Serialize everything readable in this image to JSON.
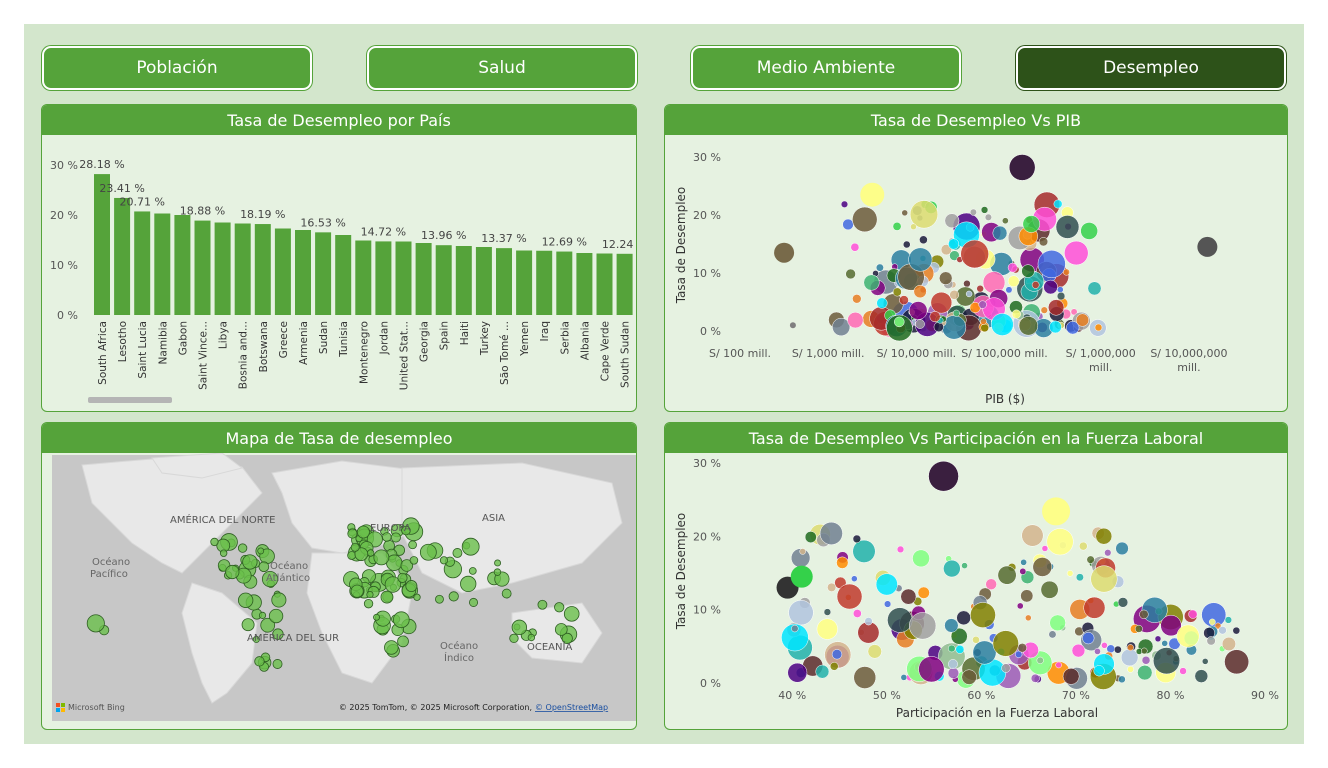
{
  "nav": {
    "tabs": [
      {
        "label": "Población",
        "active": false
      },
      {
        "label": "Salud",
        "active": false
      },
      {
        "label": "Medio Ambiente",
        "active": false
      },
      {
        "label": "Desempleo",
        "active": true
      }
    ]
  },
  "colors": {
    "accent": "#55a33a",
    "accent_dark": "#2d5219",
    "background": "#d3e6cc",
    "panel_bg": "#e6f2e1"
  },
  "bar_panel": {
    "title": "Tasa de Desempleo por País"
  },
  "gdp_panel": {
    "title": "Tasa de Desempleo Vs PIB"
  },
  "map_panel": {
    "title": "Mapa de Tasa de desempleo",
    "labels": {
      "north_america": "AMÉRICA DEL NORTE",
      "south_america": "AMÉRICA DEL SUR",
      "europe": "EUROPA",
      "asia": "ASIA",
      "oceania": "OCEANÍA",
      "pacific_1": "Océano",
      "pacific_2": "Pacífico",
      "atlantic_1": "Océano",
      "atlantic_2": "Atlántico",
      "indian_1": "Océano",
      "indian_2": "Índico"
    },
    "brand": "Microsoft Bing",
    "credits": "© 2025 TomTom, © 2025 Microsoft Corporation,",
    "credits_link": "© OpenStreetMap"
  },
  "labor_panel": {
    "title": "Tasa de Desempleo Vs Participación en la Fuerza Laboral"
  },
  "chart_data": [
    {
      "type": "bar",
      "title": "Tasa de Desempleo por País",
      "categories": [
        "South Africa",
        "Lesotho",
        "Saint Lucia",
        "Namibia",
        "Gabon",
        "Saint Vince...",
        "Libya",
        "Bosnia and...",
        "Botswana",
        "Greece",
        "Armenia",
        "Sudan",
        "Tunisia",
        "Montenegro",
        "Jordan",
        "United Stat...",
        "Georgia",
        "Spain",
        "Haiti",
        "Turkey",
        "São Tomé ...",
        "Yemen",
        "Iraq",
        "Serbia",
        "Albania",
        "Cape Verde",
        "South Sudan"
      ],
      "values": [
        28.18,
        23.41,
        20.71,
        20.3,
        20.0,
        18.88,
        18.5,
        18.3,
        18.19,
        17.3,
        17.0,
        16.53,
        16.0,
        14.9,
        14.72,
        14.7,
        14.4,
        13.96,
        13.8,
        13.6,
        13.37,
        12.9,
        12.85,
        12.69,
        12.4,
        12.3,
        12.24
      ],
      "data_labels": [
        "28.18 %",
        "23.41 %",
        "20.71 %",
        "",
        "",
        "18.88 %",
        "",
        "",
        "18.19 %",
        "",
        "",
        "16.53 %",
        "",
        "",
        "14.72 %",
        "",
        "",
        "13.96 %",
        "",
        "",
        "13.37 %",
        "",
        "",
        "12.69 %",
        "",
        "",
        "12.24 %"
      ],
      "y_ticks": [
        "0 %",
        "10 %",
        "20 %",
        "30 %"
      ],
      "ylim": [
        0,
        32
      ]
    },
    {
      "type": "scatter",
      "title": "Tasa de Desempleo Vs PIB",
      "xlabel": "PIB ($)",
      "ylabel": "Tasa de Desempleo",
      "x_scale": "log",
      "x_ticks": [
        [
          "S/ 100 mill."
        ],
        [
          "S/ 1,000 mill."
        ],
        [
          "S/ 10,000 mill."
        ],
        [
          "S/ 100,000 mill."
        ],
        [
          "S/ 1,000,000",
          "mill."
        ],
        [
          "S/ 10,000,000",
          "mill."
        ]
      ],
      "y_ticks": [
        "0 %",
        "10 %",
        "20 %",
        "30 %"
      ],
      "ylim": [
        0,
        30
      ]
    },
    {
      "type": "scatter",
      "title": "Tasa de Desempleo Vs Participación en la Fuerza Laboral",
      "xlabel": "Participación en la Fuerza Laboral",
      "ylabel": "Tasa de Desempleo",
      "x_ticks": [
        "40 %",
        "50 %",
        "60 %",
        "70 %",
        "80 %",
        "90 %"
      ],
      "y_ticks": [
        "0 %",
        "10 %",
        "20 %",
        "30 %"
      ],
      "xlim": [
        35,
        90
      ],
      "ylim": [
        0,
        30
      ]
    }
  ]
}
